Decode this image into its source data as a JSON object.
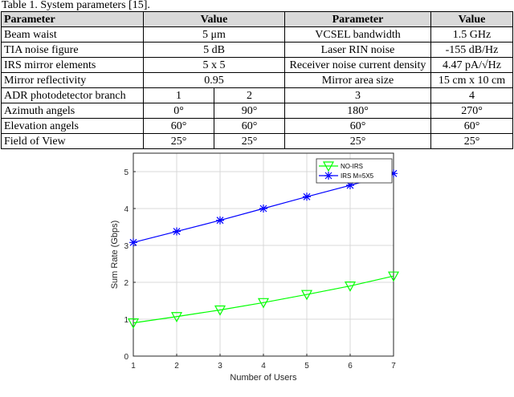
{
  "caption": "Table 1. System parameters [15].",
  "table": {
    "headers": [
      "Parameter",
      "Value",
      "Parameter",
      "Value"
    ],
    "rows": [
      [
        "Beam waist",
        "5 μm",
        "VCSEL bandwidth",
        "1.5 GHz"
      ],
      [
        "TIA noise figure",
        "5 dB",
        "Laser RIN noise",
        "-155 dB/Hz"
      ],
      [
        "IRS mirror elements",
        "5 x 5",
        "Receiver noise current density",
        "4.47 pA/√Hz"
      ],
      [
        "Mirror reflectivity",
        "0.95",
        "Mirror area size",
        "15 cm x 10 cm"
      ]
    ],
    "adr_rows": [
      [
        "ADR photodetector branch",
        "1",
        "2",
        "3",
        "4"
      ],
      [
        "Azimuth angels",
        "0°",
        "90°",
        "180°",
        "270°"
      ],
      [
        "Elevation angels",
        "60°",
        "60°",
        "60°",
        "60°"
      ],
      [
        "Field of View",
        "25°",
        "25°",
        "25°",
        "25°"
      ]
    ]
  },
  "chart_data": {
    "type": "line",
    "title": "",
    "xlabel": "Number of Users",
    "ylabel": "Sum Rate (Gbps)",
    "x": [
      1,
      2,
      3,
      4,
      5,
      6,
      7
    ],
    "xlim": [
      1,
      7
    ],
    "ylim": [
      0,
      5.5
    ],
    "xticks": [
      "1",
      "2",
      "3",
      "4",
      "5",
      "6",
      "7"
    ],
    "yticks": [
      "0",
      "1",
      "2",
      "3",
      "4",
      "5"
    ],
    "grid": true,
    "legend_position": "top-right",
    "series": [
      {
        "name": "NO-IRS",
        "values": [
          0.9,
          1.07,
          1.25,
          1.45,
          1.67,
          1.9,
          2.17
        ],
        "color": "#00ff00",
        "marker": "triangle-down"
      },
      {
        "name": "IRS M=5X5",
        "values": [
          3.08,
          3.38,
          3.68,
          4.0,
          4.32,
          4.63,
          4.95
        ],
        "color": "#0000ff",
        "marker": "asterisk"
      }
    ]
  }
}
